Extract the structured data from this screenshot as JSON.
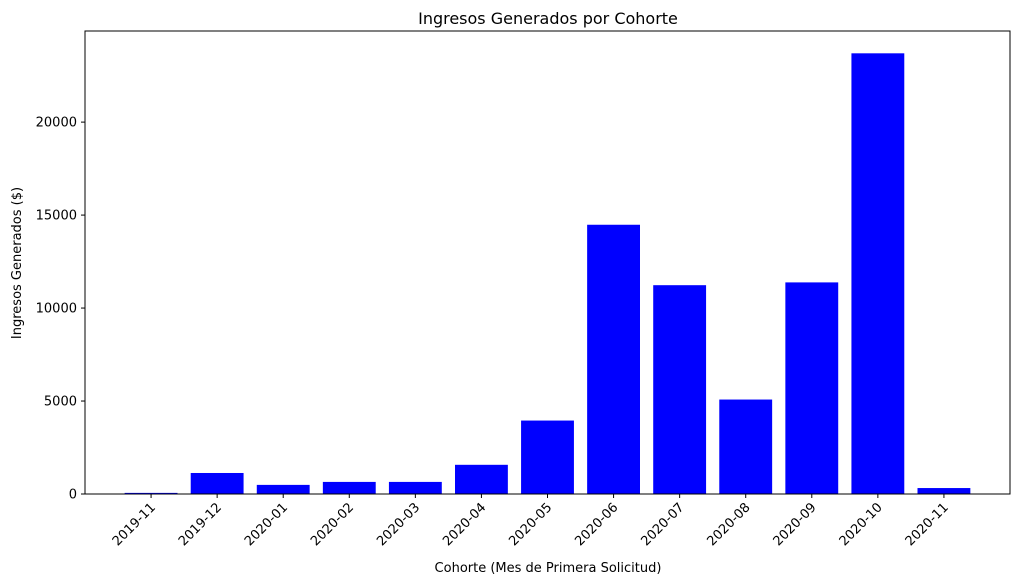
{
  "chart_data": {
    "type": "bar",
    "title": "Ingresos Generados por Cohorte",
    "xlabel": "Cohorte (Mes de Primera Solicitud)",
    "ylabel": "Ingresos Generados ($)",
    "categories": [
      "2019-11",
      "2019-12",
      "2020-01",
      "2020-02",
      "2020-03",
      "2020-04",
      "2020-05",
      "2020-06",
      "2020-07",
      "2020-08",
      "2020-09",
      "2020-10",
      "2020-11"
    ],
    "values": [
      60,
      1130,
      490,
      650,
      650,
      1570,
      3950,
      14480,
      11230,
      5080,
      11380,
      23700,
      320
    ],
    "ylim": [
      0,
      24900
    ],
    "yticks": [
      0,
      5000,
      10000,
      15000,
      20000
    ],
    "grid": false,
    "bar_color": "#0000ff"
  }
}
